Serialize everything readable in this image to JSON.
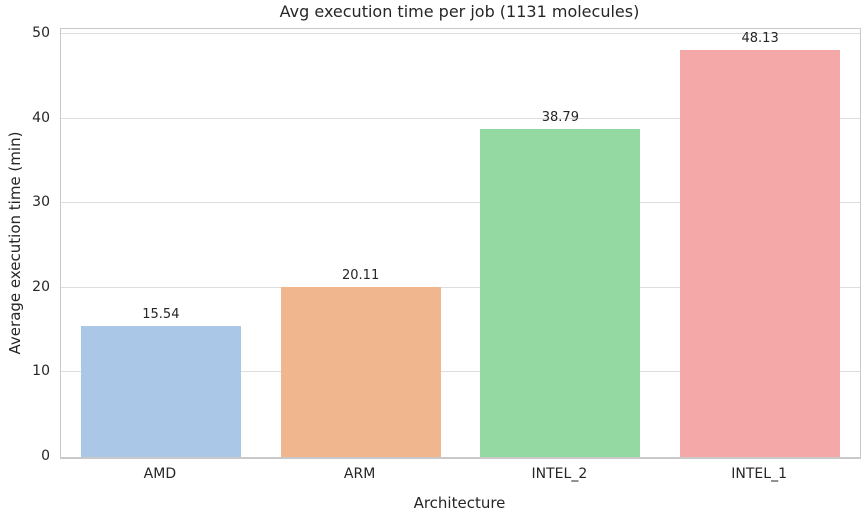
{
  "chart_data": {
    "type": "bar",
    "title": "Avg execution time per job (1131 molecules)",
    "xlabel": "Architecture",
    "ylabel": "Average execution time (min)",
    "categories": [
      "AMD",
      "ARM",
      "INTEL_2",
      "INTEL_1"
    ],
    "values": [
      15.54,
      20.11,
      38.79,
      48.13
    ],
    "value_labels": [
      "15.54",
      "20.11",
      "38.79",
      "48.13"
    ],
    "bar_colors": [
      "#aac7e8",
      "#f0b78e",
      "#94d8a2",
      "#f4a9a8"
    ],
    "ylim": [
      0,
      50
    ],
    "yticks": [
      0,
      10,
      20,
      30,
      40,
      50
    ],
    "grid": "horizontal",
    "legend": "none",
    "bar_width_fraction": 0.8,
    "colors": {
      "background": "#ffffff",
      "gridline": "#dddddd",
      "spine": "#c9c9c9",
      "text": "#262626"
    }
  }
}
